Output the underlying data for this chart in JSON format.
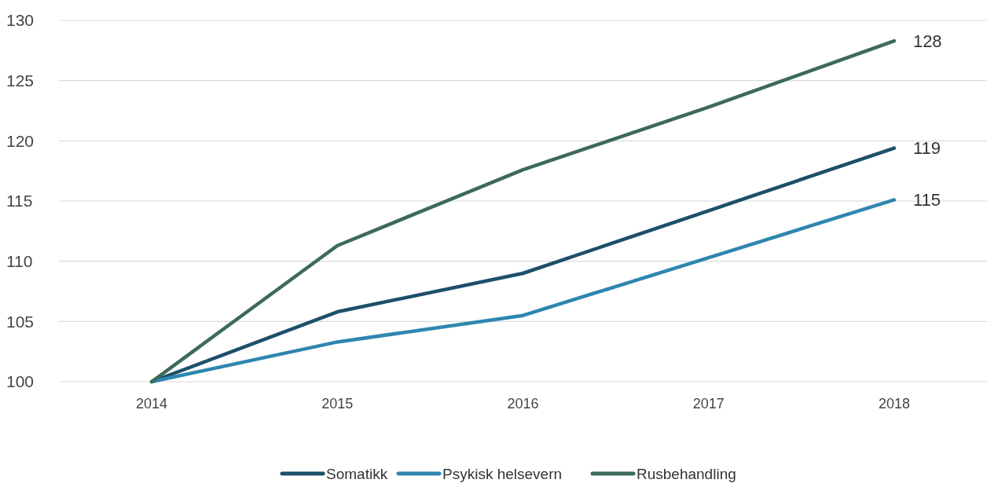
{
  "chart_data": {
    "type": "line",
    "categories": [
      "2014",
      "2015",
      "2016",
      "2017",
      "2018"
    ],
    "series": [
      {
        "name": "Somatikk",
        "color": "#1d4f6b",
        "values": [
          100,
          105.8,
          109.0,
          114.2,
          119.4
        ],
        "value_labels": [
          null,
          null,
          null,
          null,
          "119"
        ]
      },
      {
        "name": "Psykisk helsevern",
        "color": "#2e86b0",
        "values": [
          100,
          103.3,
          105.5,
          110.3,
          115.1
        ],
        "value_labels": [
          null,
          null,
          null,
          null,
          "115"
        ]
      },
      {
        "name": "Rusbehandling",
        "color": "#3d6a58",
        "values": [
          100,
          111.3,
          117.6,
          122.8,
          128.3
        ],
        "value_labels": [
          null,
          null,
          null,
          null,
          "128"
        ]
      }
    ],
    "ylim": [
      100,
      130
    ],
    "yticks": [
      100,
      105,
      110,
      115,
      120,
      125,
      130
    ],
    "grid": "y",
    "legend": "bottom",
    "marker": "none",
    "line_style": "solid"
  }
}
